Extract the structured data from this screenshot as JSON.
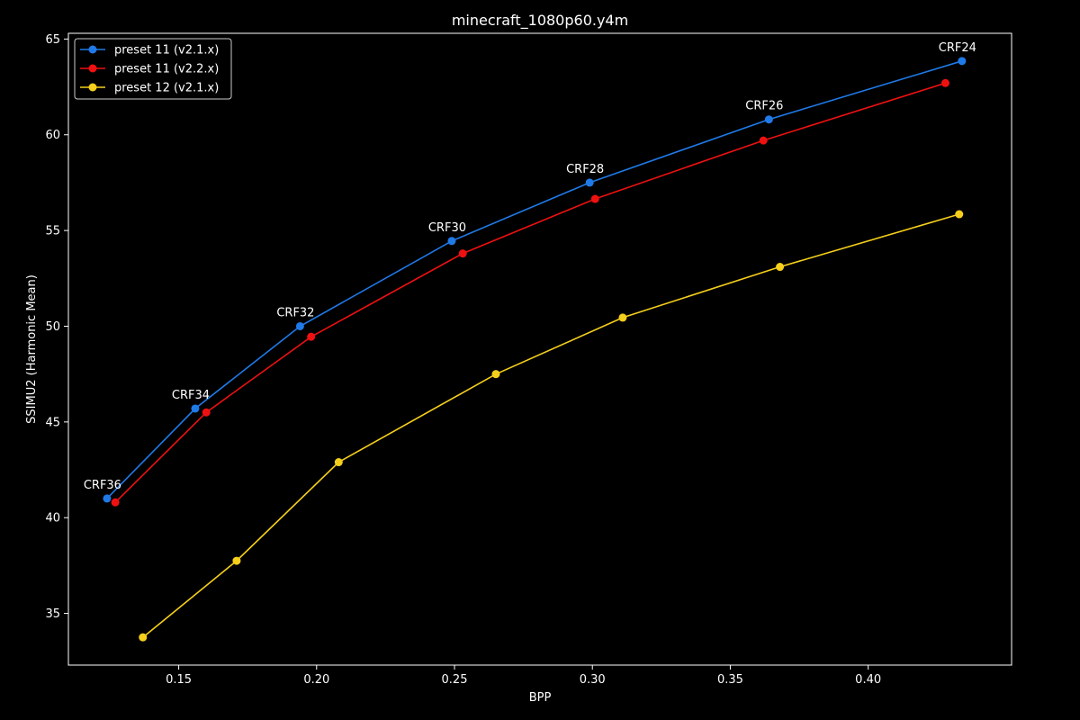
{
  "chart_data": {
    "type": "line",
    "title": "minecraft_1080p60.y4m",
    "xlabel": "BPP",
    "ylabel": "SSIMU2 (Harmonic Mean)",
    "xlim": [
      0.11,
      0.452
    ],
    "ylim": [
      32.3,
      65.3
    ],
    "xticks": [
      0.15,
      0.2,
      0.25,
      0.3,
      0.35,
      0.4
    ],
    "xtick_labels": [
      "0.15",
      "0.20",
      "0.25",
      "0.30",
      "0.35",
      "0.40"
    ],
    "yticks": [
      35,
      40,
      45,
      50,
      55,
      60,
      65
    ],
    "ytick_labels": [
      "35",
      "40",
      "45",
      "50",
      "55",
      "60",
      "65"
    ],
    "grid": false,
    "legend_position": "top-left",
    "series": [
      {
        "name": "preset 11 (v2.1.x)",
        "color": "#1f7ae8",
        "x": [
          0.124,
          0.156,
          0.194,
          0.249,
          0.299,
          0.364,
          0.434
        ],
        "y": [
          41.0,
          45.7,
          50.0,
          54.45,
          57.5,
          60.8,
          63.85
        ]
      },
      {
        "name": "preset 11 (v2.2.x)",
        "color": "#ee1111",
        "x": [
          0.127,
          0.16,
          0.198,
          0.253,
          0.301,
          0.362,
          0.428
        ],
        "y": [
          40.8,
          45.5,
          49.45,
          53.8,
          56.65,
          59.7,
          62.7
        ]
      },
      {
        "name": "preset 12 (v2.1.x)",
        "color": "#f5cf1b",
        "x": [
          0.137,
          0.171,
          0.208,
          0.265,
          0.311,
          0.368,
          0.433
        ],
        "y": [
          33.75,
          37.75,
          42.9,
          47.5,
          50.45,
          53.1,
          55.85
        ]
      }
    ],
    "annotations": [
      {
        "text": "CRF36",
        "x": 0.124,
        "y": 41.0
      },
      {
        "text": "CRF34",
        "x": 0.156,
        "y": 45.7
      },
      {
        "text": "CRF32",
        "x": 0.194,
        "y": 50.0
      },
      {
        "text": "CRF30",
        "x": 0.249,
        "y": 54.45
      },
      {
        "text": "CRF28",
        "x": 0.299,
        "y": 57.5
      },
      {
        "text": "CRF26",
        "x": 0.364,
        "y": 60.8
      },
      {
        "text": "CRF24",
        "x": 0.434,
        "y": 63.85
      }
    ]
  }
}
